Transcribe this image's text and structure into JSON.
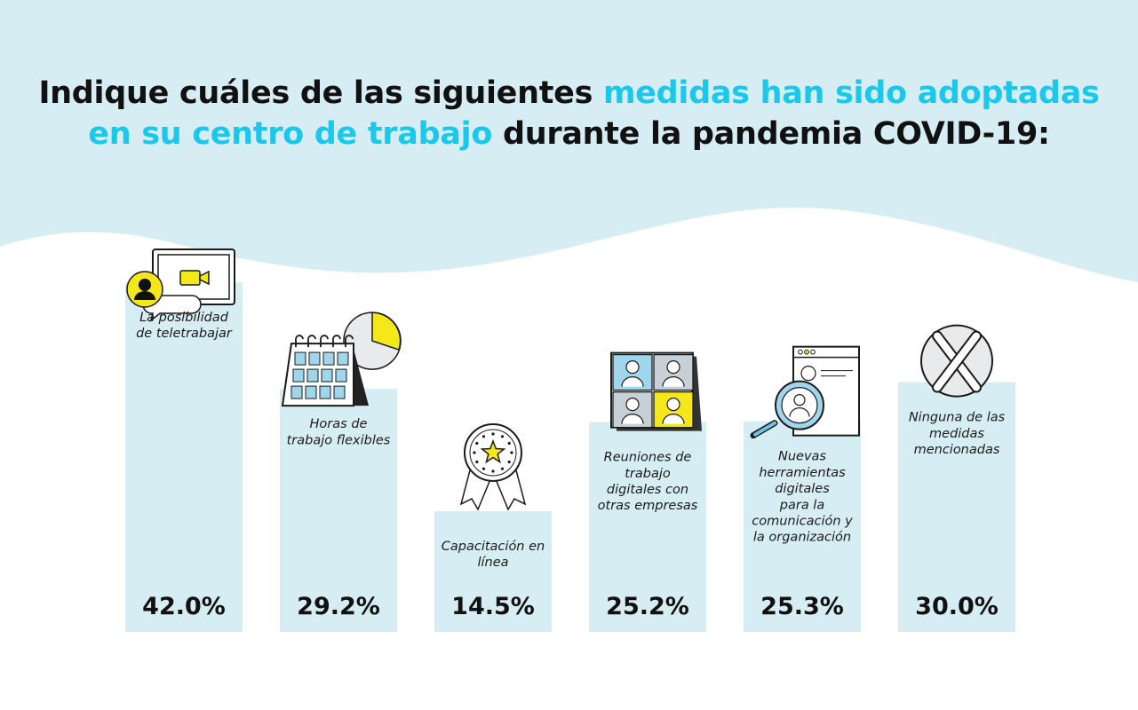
{
  "title": {
    "part1": "Indique cuáles de las siguientes",
    "part2": "medidas han sido adoptadas",
    "part3": "en su centro de trabajo",
    "part4": "durante la pandemia COVID-19:"
  },
  "colors": {
    "background_wave": "#d5edf3",
    "bar": "#d5edf3",
    "accent": "#1cc8ea",
    "icon_yellow": "#f4e81c",
    "text": "#111111"
  },
  "chart_data": {
    "type": "bar",
    "title": "Indique cuáles de las siguientes medidas han sido adoptadas en su centro de trabajo durante la pandemia COVID-19:",
    "ylim": [
      0,
      42
    ],
    "categories": [
      "La posibilidad de teletrabajar",
      "Horas de trabajo flexibles",
      "Capacitación en línea",
      "Reuniones de trabajo digitales con otras empresas",
      "Nuevas herramientas digitales para la comunicación y la organización",
      "Ninguna de las medidas mencionadas"
    ],
    "values": [
      42.0,
      29.2,
      14.5,
      25.2,
      25.3,
      30.0
    ],
    "value_labels": [
      "42.0%",
      "29.2%",
      "14.5%",
      "25.2%",
      "25.3%",
      "30.0%"
    ],
    "label_lines": [
      [
        "La posibilidad",
        "de teletrabajar"
      ],
      [
        "Horas de",
        "trabajo flexibles"
      ],
      [
        "Capacitación en",
        "línea"
      ],
      [
        "Reuniones de",
        "trabajo",
        "digitales con",
        "otras empresas"
      ],
      [
        "Nuevas",
        "herramientas",
        "digitales",
        "para la",
        "comunicación y",
        "la organización"
      ],
      [
        "Ninguna de las",
        "medidas",
        "mencionadas"
      ]
    ],
    "icons": [
      "video-call-icon",
      "calendar-icon",
      "award-ribbon-icon",
      "puzzle-team-icon",
      "magnifier-profile-icon",
      "x-mark-icon"
    ]
  }
}
